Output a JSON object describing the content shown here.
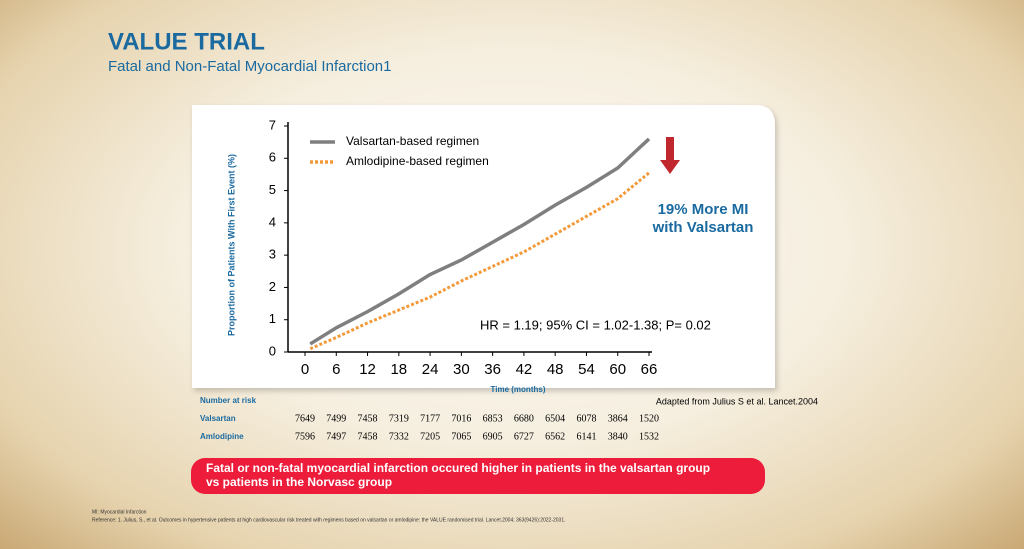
{
  "header": {
    "title": "VALUE TRIAL",
    "subtitle": "Fatal and Non-Fatal Myocardial Infarction1"
  },
  "chart_data": {
    "type": "line",
    "y_label": "Proportion of Patients With First Event (%)",
    "x_label": "Time (months)",
    "x": [
      1,
      6,
      12,
      18,
      24,
      30,
      36,
      42,
      48,
      54,
      60,
      66
    ],
    "series": [
      {
        "name": "Valsartan-based regimen",
        "color": "#7f7f7f",
        "values": [
          0.25,
          0.75,
          1.25,
          1.8,
          2.4,
          2.85,
          3.4,
          3.95,
          4.55,
          5.1,
          5.7,
          6.6
        ]
      },
      {
        "name": "Amlodipine-based regimen",
        "color": "#f39a3a",
        "values": [
          0.1,
          0.45,
          0.9,
          1.3,
          1.7,
          2.2,
          2.65,
          3.1,
          3.65,
          4.2,
          4.75,
          5.55
        ]
      }
    ],
    "xlim": [
      0,
      66
    ],
    "xticks": [
      0,
      6,
      12,
      18,
      24,
      30,
      36,
      42,
      48,
      54,
      60,
      66
    ],
    "ylim": [
      0,
      7
    ],
    "yticks": [
      0,
      1,
      2,
      3,
      4,
      5,
      6,
      7
    ],
    "annotations": [
      "19% More MI",
      "with Valsartan",
      "HR = 1.19; 95% CI = 1.02-1.38; P= 0.02"
    ],
    "source": "Adapted from Julius S et al. Lancet.2004"
  },
  "risk_table": {
    "header": "Number at risk",
    "rows": [
      {
        "label": "Valsartan",
        "values": [
          7649,
          7499,
          7458,
          7319,
          7177,
          7016,
          6853,
          6680,
          6504,
          6078,
          3864,
          1520
        ]
      },
      {
        "label": "Amlodipine",
        "values": [
          7596,
          7497,
          7458,
          7332,
          7205,
          7065,
          6905,
          6727,
          6562,
          6141,
          3840,
          1532
        ]
      }
    ]
  },
  "callout": [
    "Fatal or non-fatal myocardial infarction occured higher in patients in the valsartan group",
    "vs patients in the Norvasc group"
  ],
  "footnotes": [
    "MI: Myocardial Infarction",
    "Reference: 1. Julius, S., et al. Outcomes in hypertensive patients at high cardiovascular risk treated with regimens based on valsartan or amlodipine: the VALUE randomised trial. Lancet.2004; 363(9426):2022-2031."
  ]
}
